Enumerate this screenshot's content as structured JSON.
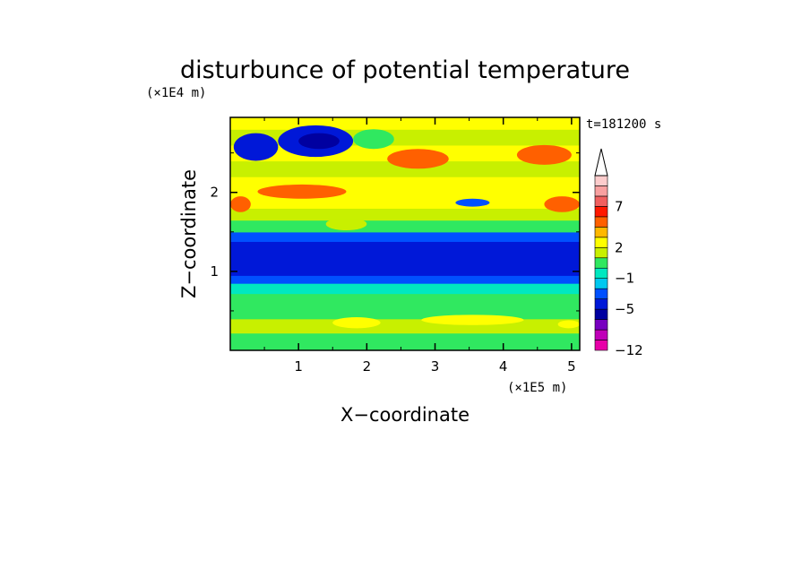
{
  "chart_data": {
    "type": "heatmap",
    "title": "disturbunce of potential temperature",
    "time_label": "t=181200 s",
    "xlabel": "X−coordinate",
    "ylabel": "Z−coordinate",
    "x_scale_label": "(×1E5 m)",
    "y_scale_label": "(×1E4 m)",
    "xlim": [
      0,
      5.12
    ],
    "ylim": [
      0,
      2.95
    ],
    "x_ticks": [
      {
        "value": 1,
        "label": "1"
      },
      {
        "value": 2,
        "label": "2"
      },
      {
        "value": 3,
        "label": "3"
      },
      {
        "value": 4,
        "label": "4"
      },
      {
        "value": 5,
        "label": "5"
      }
    ],
    "y_ticks": [
      {
        "value": 1,
        "label": "1"
      },
      {
        "value": 2,
        "label": "2"
      }
    ],
    "colorbar": {
      "extend": "max",
      "levels": [
        -12,
        -10,
        -8,
        -6,
        -5,
        -3,
        -2,
        -1,
        0,
        1,
        2,
        3,
        5,
        6,
        7,
        8,
        9,
        11
      ],
      "colors": [
        "#e800a8",
        "#c000b8",
        "#7800c0",
        "#0000a0",
        "#0018d8",
        "#0050ff",
        "#00c8f0",
        "#00e8c0",
        "#30e860",
        "#c8f000",
        "#ffff00",
        "#ffb800",
        "#ff6000",
        "#ff1800",
        "#f06060",
        "#f8a0a0",
        "#fccccc"
      ],
      "tick_labels": [
        {
          "value": -12,
          "label": "−12"
        },
        {
          "value": -5,
          "label": "−5"
        },
        {
          "value": -1,
          "label": "−1"
        },
        {
          "value": 2,
          "label": "2"
        },
        {
          "value": 7,
          "label": "7"
        }
      ]
    },
    "bands": [
      {
        "z": [
          0.0,
          0.08
        ],
        "value": 0.5
      },
      {
        "z": [
          0.08,
          0.22
        ],
        "value": 0.8
      },
      {
        "z": [
          0.22,
          0.4
        ],
        "value": 1.5
      },
      {
        "z": [
          0.4,
          0.55
        ],
        "value": 0.6
      },
      {
        "z": [
          0.55,
          0.72
        ],
        "value": 0.2
      },
      {
        "z": [
          0.72,
          0.85
        ],
        "value": -0.5
      },
      {
        "z": [
          0.85,
          0.95
        ],
        "value": -2.5
      },
      {
        "z": [
          0.95,
          1.38
        ],
        "value": -4.0
      },
      {
        "z": [
          1.38,
          1.5
        ],
        "value": -2.5
      },
      {
        "z": [
          1.5,
          1.65
        ],
        "value": 0.5
      },
      {
        "z": [
          1.65,
          1.8
        ],
        "value": 1.5
      },
      {
        "z": [
          1.8,
          2.0
        ],
        "value": 2.8
      },
      {
        "z": [
          2.0,
          2.2
        ],
        "value": 2.3
      },
      {
        "z": [
          2.2,
          2.4
        ],
        "value": 1.2
      },
      {
        "z": [
          2.4,
          2.6
        ],
        "value": 2.0
      },
      {
        "z": [
          2.6,
          2.8
        ],
        "value": 1.0
      },
      {
        "z": [
          2.8,
          2.95
        ],
        "value": 2.2
      }
    ],
    "patches": [
      {
        "x": [
          0.7,
          1.8
        ],
        "z": [
          2.45,
          2.85
        ],
        "value": -4.0
      },
      {
        "x": [
          0.05,
          0.7
        ],
        "z": [
          2.4,
          2.75
        ],
        "value": -4.0
      },
      {
        "x": [
          1.0,
          1.6
        ],
        "z": [
          2.55,
          2.75
        ],
        "value": -5.5
      },
      {
        "x": [
          1.8,
          2.4
        ],
        "z": [
          2.55,
          2.8
        ],
        "value": 0.5
      },
      {
        "x": [
          0.4,
          1.7
        ],
        "z": [
          1.92,
          2.1
        ],
        "value": 5.5
      },
      {
        "x": [
          2.3,
          3.2
        ],
        "z": [
          2.3,
          2.55
        ],
        "value": 5.5
      },
      {
        "x": [
          4.2,
          5.0
        ],
        "z": [
          2.35,
          2.6
        ],
        "value": 5.5
      },
      {
        "x": [
          4.6,
          5.12
        ],
        "z": [
          1.75,
          1.95
        ],
        "value": 5.5
      },
      {
        "x": [
          0.0,
          0.3
        ],
        "z": [
          1.75,
          1.95
        ],
        "value": 5.5
      },
      {
        "x": [
          3.3,
          3.8
        ],
        "z": [
          1.82,
          1.92
        ],
        "value": -2.5
      },
      {
        "x": [
          1.4,
          2.0
        ],
        "z": [
          1.52,
          1.68
        ],
        "value": 1.5
      },
      {
        "x": [
          1.5,
          2.2
        ],
        "z": [
          0.28,
          0.42
        ],
        "value": 2.2
      },
      {
        "x": [
          2.8,
          4.3
        ],
        "z": [
          0.32,
          0.45
        ],
        "value": 2.2
      },
      {
        "x": [
          4.8,
          5.12
        ],
        "z": [
          0.28,
          0.38
        ],
        "value": 2.2
      }
    ]
  }
}
